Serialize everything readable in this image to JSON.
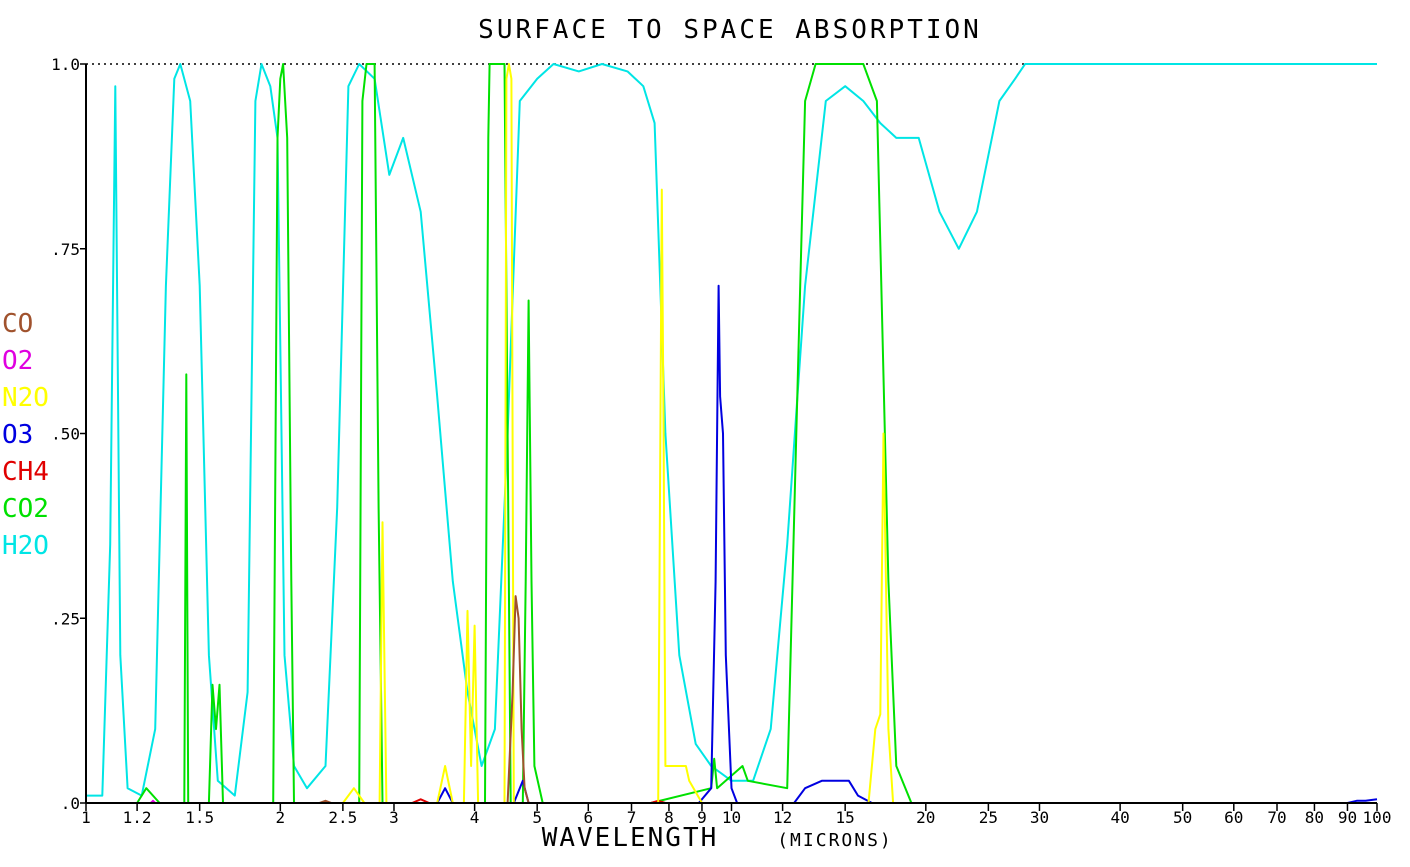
{
  "chart_data": {
    "type": "line",
    "title": "SURFACE TO SPACE ABSORPTION",
    "xlabel": "WAVELENGTH",
    "xlabel_unit": "(MICRONS)",
    "ylabel": "",
    "x_scale": "log",
    "xlim": [
      1,
      100
    ],
    "ylim": [
      0,
      1
    ],
    "x_ticks": [
      {
        "value": 1,
        "label": "1"
      },
      {
        "value": 1.2,
        "label": "1.2"
      },
      {
        "value": 1.5,
        "label": "1.5"
      },
      {
        "value": 2,
        "label": "2"
      },
      {
        "value": 2.5,
        "label": "2.5"
      },
      {
        "value": 3,
        "label": "3"
      },
      {
        "value": 4,
        "label": "4"
      },
      {
        "value": 5,
        "label": "5"
      },
      {
        "value": 6,
        "label": "6"
      },
      {
        "value": 7,
        "label": "7"
      },
      {
        "value": 8,
        "label": "8"
      },
      {
        "value": 9,
        "label": "9"
      },
      {
        "value": 10,
        "label": "10"
      },
      {
        "value": 12,
        "label": "12"
      },
      {
        "value": 15,
        "label": "15"
      },
      {
        "value": 20,
        "label": "20"
      },
      {
        "value": 25,
        "label": "25"
      },
      {
        "value": 30,
        "label": "30"
      },
      {
        "value": 40,
        "label": "40"
      },
      {
        "value": 50,
        "label": "50"
      },
      {
        "value": 60,
        "label": "60"
      },
      {
        "value": 70,
        "label": "70"
      },
      {
        "value": 80,
        "label": "80"
      },
      {
        "value": 90,
        "label": "90"
      },
      {
        "value": 100,
        "label": "100"
      }
    ],
    "y_ticks": [
      {
        "value": 0,
        "label": ".0"
      },
      {
        "value": 0.25,
        "label": ".25"
      },
      {
        "value": 0.5,
        "label": ".50"
      },
      {
        "value": 0.75,
        "label": ".75"
      },
      {
        "value": 1.0,
        "label": "1.0"
      }
    ],
    "reference_line": {
      "y": 1.0,
      "style": "dotted",
      "color": "#000000"
    },
    "legend_position": "left",
    "series": [
      {
        "name": "H2O",
        "color": "#00e5e5",
        "points": [
          [
            1,
            0.01
          ],
          [
            1.06,
            0.01
          ],
          [
            1.09,
            0.35
          ],
          [
            1.11,
            0.97
          ],
          [
            1.13,
            0.2
          ],
          [
            1.16,
            0.02
          ],
          [
            1.22,
            0.01
          ],
          [
            1.28,
            0.1
          ],
          [
            1.33,
            0.7
          ],
          [
            1.37,
            0.98
          ],
          [
            1.4,
            1.0
          ],
          [
            1.45,
            0.95
          ],
          [
            1.5,
            0.7
          ],
          [
            1.55,
            0.2
          ],
          [
            1.6,
            0.03
          ],
          [
            1.7,
            0.01
          ],
          [
            1.78,
            0.15
          ],
          [
            1.83,
            0.95
          ],
          [
            1.87,
            1.0
          ],
          [
            1.93,
            0.97
          ],
          [
            1.98,
            0.9
          ],
          [
            2.03,
            0.2
          ],
          [
            2.1,
            0.05
          ],
          [
            2.2,
            0.02
          ],
          [
            2.35,
            0.05
          ],
          [
            2.45,
            0.4
          ],
          [
            2.55,
            0.97
          ],
          [
            2.65,
            1.0
          ],
          [
            2.8,
            0.98
          ],
          [
            2.95,
            0.85
          ],
          [
            3.1,
            0.9
          ],
          [
            3.3,
            0.8
          ],
          [
            3.5,
            0.55
          ],
          [
            3.7,
            0.3
          ],
          [
            3.9,
            0.15
          ],
          [
            4.1,
            0.05
          ],
          [
            4.3,
            0.1
          ],
          [
            4.5,
            0.5
          ],
          [
            4.7,
            0.95
          ],
          [
            5.0,
            0.98
          ],
          [
            5.3,
            1.0
          ],
          [
            5.8,
            0.99
          ],
          [
            6.3,
            1.0
          ],
          [
            6.9,
            0.99
          ],
          [
            7.3,
            0.97
          ],
          [
            7.6,
            0.92
          ],
          [
            7.9,
            0.5
          ],
          [
            8.3,
            0.2
          ],
          [
            8.8,
            0.08
          ],
          [
            9.3,
            0.05
          ],
          [
            10.0,
            0.03
          ],
          [
            10.8,
            0.03
          ],
          [
            11.5,
            0.1
          ],
          [
            12.2,
            0.35
          ],
          [
            13.0,
            0.7
          ],
          [
            14.0,
            0.95
          ],
          [
            15.0,
            0.97
          ],
          [
            16.0,
            0.95
          ],
          [
            17.0,
            0.92
          ],
          [
            18.0,
            0.9
          ],
          [
            19.5,
            0.9
          ],
          [
            21.0,
            0.8
          ],
          [
            22.5,
            0.75
          ],
          [
            24.0,
            0.8
          ],
          [
            26.0,
            0.95
          ],
          [
            27.5,
            0.98
          ],
          [
            28.5,
            1.0
          ],
          [
            35,
            1.0
          ],
          [
            50,
            1.0
          ],
          [
            70,
            1.0
          ],
          [
            100,
            1.0
          ]
        ]
      },
      {
        "name": "CO2",
        "color": "#00e000",
        "points": [
          [
            1,
            0
          ],
          [
            1.2,
            0.0
          ],
          [
            1.24,
            0.02
          ],
          [
            1.3,
            0.0
          ],
          [
            1.42,
            0.0
          ],
          [
            1.43,
            0.58
          ],
          [
            1.44,
            0.0
          ],
          [
            1.55,
            0.0
          ],
          [
            1.57,
            0.16
          ],
          [
            1.59,
            0.1
          ],
          [
            1.61,
            0.16
          ],
          [
            1.63,
            0.0
          ],
          [
            1.95,
            0.0
          ],
          [
            1.98,
            0.9
          ],
          [
            2.0,
            0.98
          ],
          [
            2.02,
            1.0
          ],
          [
            2.05,
            0.9
          ],
          [
            2.08,
            0.3
          ],
          [
            2.1,
            0.0
          ],
          [
            2.65,
            0.0
          ],
          [
            2.68,
            0.95
          ],
          [
            2.72,
            1.0
          ],
          [
            2.8,
            1.0
          ],
          [
            2.84,
            0.4
          ],
          [
            2.88,
            0.0
          ],
          [
            4.15,
            0.0
          ],
          [
            4.2,
            0.9
          ],
          [
            4.22,
            1.0
          ],
          [
            4.45,
            1.0
          ],
          [
            4.5,
            0.5
          ],
          [
            4.55,
            0.0
          ],
          [
            4.75,
            0.0
          ],
          [
            4.8,
            0.3
          ],
          [
            4.85,
            0.68
          ],
          [
            4.9,
            0.3
          ],
          [
            4.95,
            0.05
          ],
          [
            5.1,
            0.0
          ],
          [
            7.5,
            0.0
          ],
          [
            9.3,
            0.02
          ],
          [
            9.4,
            0.06
          ],
          [
            9.5,
            0.02
          ],
          [
            10.4,
            0.05
          ],
          [
            10.6,
            0.03
          ],
          [
            12.2,
            0.02
          ],
          [
            12.6,
            0.5
          ],
          [
            13.0,
            0.95
          ],
          [
            13.5,
            1.0
          ],
          [
            16.0,
            1.0
          ],
          [
            16.8,
            0.95
          ],
          [
            17.5,
            0.3
          ],
          [
            18.0,
            0.05
          ],
          [
            19.0,
            0.0
          ],
          [
            100,
            0.0
          ]
        ]
      },
      {
        "name": "CH4",
        "color": "#e00000",
        "points": [
          [
            1,
            0
          ],
          [
            3.2,
            0
          ],
          [
            3.3,
            0.005
          ],
          [
            3.4,
            0
          ],
          [
            7.5,
            0
          ],
          [
            7.7,
            0.003
          ],
          [
            7.9,
            0
          ],
          [
            100,
            0
          ]
        ]
      },
      {
        "name": "O3",
        "color": "#0000e0",
        "points": [
          [
            1,
            0
          ],
          [
            3.5,
            0
          ],
          [
            3.6,
            0.02
          ],
          [
            3.7,
            0
          ],
          [
            4.6,
            0
          ],
          [
            4.75,
            0.03
          ],
          [
            4.85,
            0
          ],
          [
            8.9,
            0
          ],
          [
            9.3,
            0.02
          ],
          [
            9.45,
            0.3
          ],
          [
            9.55,
            0.7
          ],
          [
            9.6,
            0.55
          ],
          [
            9.7,
            0.5
          ],
          [
            9.8,
            0.2
          ],
          [
            10.0,
            0.02
          ],
          [
            10.2,
            0
          ],
          [
            12.5,
            0.0
          ],
          [
            13.0,
            0.02
          ],
          [
            13.8,
            0.03
          ],
          [
            14.5,
            0.03
          ],
          [
            15.2,
            0.03
          ],
          [
            15.7,
            0.01
          ],
          [
            16.5,
            0
          ],
          [
            90,
            0
          ],
          [
            93,
            0.003
          ],
          [
            96,
            0.003
          ],
          [
            100,
            0.005
          ]
        ]
      },
      {
        "name": "N2O",
        "color": "#ffff00",
        "points": [
          [
            1,
            0
          ],
          [
            2.5,
            0
          ],
          [
            2.6,
            0.02
          ],
          [
            2.7,
            0
          ],
          [
            2.85,
            0
          ],
          [
            2.88,
            0.38
          ],
          [
            2.92,
            0
          ],
          [
            3.5,
            0
          ],
          [
            3.6,
            0.05
          ],
          [
            3.7,
            0
          ],
          [
            3.85,
            0
          ],
          [
            3.9,
            0.26
          ],
          [
            3.95,
            0.05
          ],
          [
            4.0,
            0.24
          ],
          [
            4.05,
            0
          ],
          [
            4.45,
            0
          ],
          [
            4.48,
            0.98
          ],
          [
            4.52,
            1.0
          ],
          [
            4.56,
            0.98
          ],
          [
            4.6,
            0
          ],
          [
            7.7,
            0
          ],
          [
            7.8,
            0.83
          ],
          [
            7.85,
            0.5
          ],
          [
            7.9,
            0.05
          ],
          [
            8.5,
            0.05
          ],
          [
            8.6,
            0.03
          ],
          [
            9.0,
            0
          ],
          [
            16.3,
            0
          ],
          [
            16.7,
            0.1
          ],
          [
            17.0,
            0.12
          ],
          [
            17.2,
            0.5
          ],
          [
            17.5,
            0.1
          ],
          [
            17.8,
            0
          ],
          [
            100,
            0
          ]
        ]
      },
      {
        "name": "O2",
        "color": "#e000e0",
        "points": [
          [
            1,
            0
          ],
          [
            1.26,
            0
          ],
          [
            1.27,
            0.003
          ],
          [
            1.28,
            0
          ],
          [
            100,
            0
          ]
        ]
      },
      {
        "name": "CO",
        "color": "#a0522d",
        "points": [
          [
            1,
            0
          ],
          [
            2.3,
            0
          ],
          [
            2.35,
            0.003
          ],
          [
            2.4,
            0
          ],
          [
            4.5,
            0
          ],
          [
            4.58,
            0.15
          ],
          [
            4.63,
            0.28
          ],
          [
            4.68,
            0.25
          ],
          [
            4.73,
            0.1
          ],
          [
            4.78,
            0.02
          ],
          [
            4.85,
            0
          ],
          [
            100,
            0
          ]
        ]
      }
    ]
  }
}
